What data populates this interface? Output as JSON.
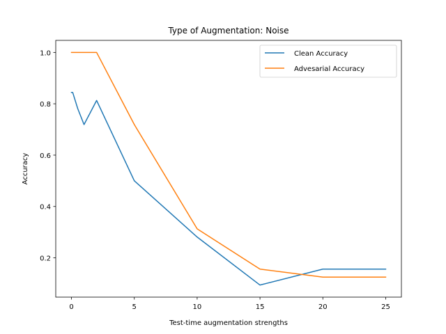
{
  "chart_data": {
    "type": "line",
    "title": "Type of Augmentation: Noise",
    "xlabel": "Test-time augmentation strengths",
    "ylabel": "Accuracy",
    "xlim": [
      -1.25,
      26.25
    ],
    "ylim": [
      0.047,
      1.047
    ],
    "xticks": [
      0,
      5,
      10,
      15,
      20,
      25
    ],
    "xtick_labels": [
      "0",
      "5",
      "10",
      "15",
      "20",
      "25"
    ],
    "yticks": [
      0.2,
      0.4,
      0.6,
      0.8,
      1.0
    ],
    "ytick_labels": [
      "0.2",
      "0.4",
      "0.6",
      "0.8",
      "1.0"
    ],
    "grid": false,
    "legend_position": "top-right",
    "series": [
      {
        "name": "Clean Accuracy",
        "color": "#1f77b4",
        "x": [
          0,
          0.1,
          0.5,
          1,
          2,
          5,
          10,
          15,
          20,
          25
        ],
        "y": [
          0.844,
          0.844,
          0.781,
          0.719,
          0.813,
          0.5,
          0.281,
          0.094,
          0.156,
          0.156
        ]
      },
      {
        "name": "Advesarial Accuracy",
        "color": "#ff7f0e",
        "x": [
          0,
          0.1,
          0.5,
          1,
          2,
          5,
          10,
          15,
          20,
          25
        ],
        "y": [
          1.0,
          1.0,
          1.0,
          1.0,
          1.0,
          0.719,
          0.313,
          0.156,
          0.125,
          0.125
        ]
      }
    ]
  }
}
